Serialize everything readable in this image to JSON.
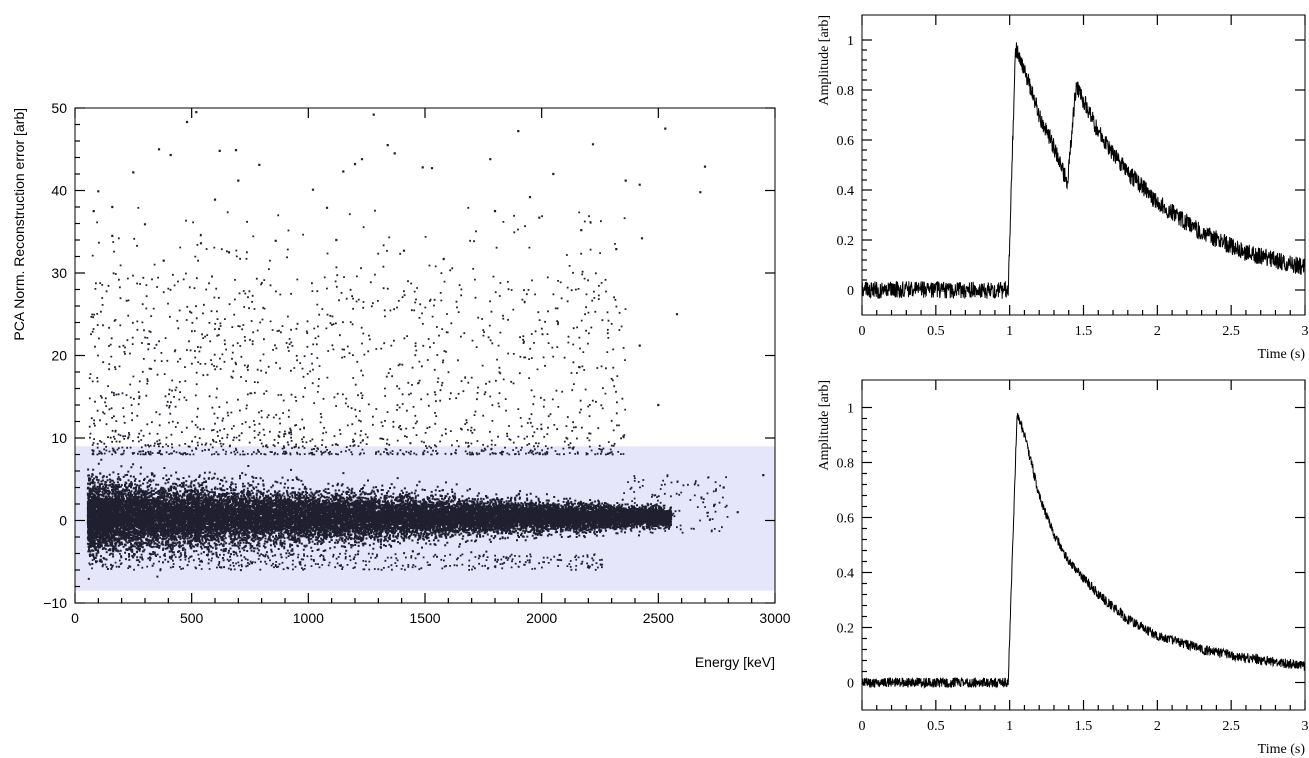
{
  "chart_data": [
    {
      "type": "scatter",
      "xlabel": "Energy [keV]",
      "ylabel": "PCA Norm. Reconstruction error [arb]",
      "xlim": [
        0,
        3000
      ],
      "ylim": [
        -10,
        50
      ],
      "x_ticks": [
        0,
        500,
        1000,
        1500,
        2000,
        2500,
        3000
      ],
      "y_ticks": [
        -10,
        0,
        10,
        20,
        30,
        40,
        50
      ],
      "x_tick_labels": [
        "0",
        "500",
        "1000",
        "1500",
        "2000",
        "2500",
        "3000"
      ],
      "y_tick_labels": [
        "−10",
        "0",
        "10",
        "20",
        "30",
        "40",
        "50"
      ],
      "marker_color": "#1f1f30",
      "highlight_band": {
        "y_range": [
          -8.5,
          9
        ],
        "color": "#e6e6fb"
      },
      "dense_cluster": {
        "x_range": [
          50,
          2500
        ],
        "y_center": 0.5,
        "y_spread": [
          -5,
          8
        ]
      },
      "outliers": [
        {
          "x": 480,
          "y": 48.3
        },
        {
          "x": 520,
          "y": 49.5
        },
        {
          "x": 1280,
          "y": 49.2
        },
        {
          "x": 2530,
          "y": 47.5
        },
        {
          "x": 1900,
          "y": 47.2
        },
        {
          "x": 360,
          "y": 45.0
        },
        {
          "x": 410,
          "y": 44.3
        },
        {
          "x": 620,
          "y": 44.8
        },
        {
          "x": 690,
          "y": 44.9
        },
        {
          "x": 1340,
          "y": 45.5
        },
        {
          "x": 2220,
          "y": 45.6
        },
        {
          "x": 1370,
          "y": 44.5
        },
        {
          "x": 1200,
          "y": 43.2
        },
        {
          "x": 1230,
          "y": 43.8
        },
        {
          "x": 790,
          "y": 43.1
        },
        {
          "x": 1780,
          "y": 43.8
        },
        {
          "x": 2700,
          "y": 42.9
        },
        {
          "x": 250,
          "y": 42.2
        },
        {
          "x": 1490,
          "y": 42.8
        },
        {
          "x": 1530,
          "y": 42.7
        },
        {
          "x": 1150,
          "y": 42.3
        },
        {
          "x": 2050,
          "y": 42.0
        },
        {
          "x": 700,
          "y": 41.2
        },
        {
          "x": 2360,
          "y": 41.2
        },
        {
          "x": 2420,
          "y": 40.7
        },
        {
          "x": 2680,
          "y": 39.8
        },
        {
          "x": 1020,
          "y": 40.1
        },
        {
          "x": 100,
          "y": 39.9
        },
        {
          "x": 600,
          "y": 38.9
        },
        {
          "x": 1950,
          "y": 39.2
        },
        {
          "x": 80,
          "y": 37.5
        },
        {
          "x": 160,
          "y": 38.0
        },
        {
          "x": 1080,
          "y": 37.9
        },
        {
          "x": 1800,
          "y": 37.5
        },
        {
          "x": 1990,
          "y": 36.7
        },
        {
          "x": 300,
          "y": 35.9
        },
        {
          "x": 2170,
          "y": 35.2
        },
        {
          "x": 160,
          "y": 34.5
        },
        {
          "x": 1120,
          "y": 34.0
        },
        {
          "x": 2430,
          "y": 34.2
        },
        {
          "x": 540,
          "y": 33.6
        },
        {
          "x": 860,
          "y": 33.9
        },
        {
          "x": 2320,
          "y": 32.9
        },
        {
          "x": 1410,
          "y": 32.7
        },
        {
          "x": 380,
          "y": 31.5
        },
        {
          "x": 660,
          "y": 32.5
        },
        {
          "x": 1580,
          "y": 31.7
        },
        {
          "x": 2580,
          "y": 25.0
        },
        {
          "x": 2420,
          "y": 21.2
        },
        {
          "x": 2500,
          "y": 14.0
        },
        {
          "x": 2950,
          "y": 5.5
        },
        {
          "x": 2780,
          "y": 4.0
        },
        {
          "x": 2840,
          "y": 1.0
        }
      ]
    },
    {
      "type": "line",
      "xlabel": "Time (s)",
      "ylabel": "Amplitude [arb]",
      "xlim": [
        0,
        3
      ],
      "ylim": [
        -0.1,
        1.1
      ],
      "x_ticks": [
        0,
        0.5,
        1,
        1.5,
        2,
        2.5,
        3
      ],
      "y_ticks": [
        0,
        0.2,
        0.4,
        0.6,
        0.8,
        1
      ],
      "x_tick_labels": [
        "0",
        "0.5",
        "1",
        "1.5",
        "2",
        "2.5",
        "3"
      ],
      "y_tick_labels": [
        "0",
        "0.2",
        "0.4",
        "0.6",
        "0.8",
        "1"
      ],
      "line_color": "#000000",
      "series": [
        {
          "description_points": [
            {
              "x": 0.0,
              "y": 0.0
            },
            {
              "x": 0.99,
              "y": 0.0
            },
            {
              "x": 1.04,
              "y": 0.97
            },
            {
              "x": 1.1,
              "y": 0.88
            },
            {
              "x": 1.2,
              "y": 0.7
            },
            {
              "x": 1.3,
              "y": 0.57
            },
            {
              "x": 1.39,
              "y": 0.43
            },
            {
              "x": 1.45,
              "y": 0.82
            },
            {
              "x": 1.6,
              "y": 0.63
            },
            {
              "x": 1.8,
              "y": 0.47
            },
            {
              "x": 2.0,
              "y": 0.35
            },
            {
              "x": 2.3,
              "y": 0.23
            },
            {
              "x": 2.6,
              "y": 0.15
            },
            {
              "x": 3.0,
              "y": 0.09
            }
          ],
          "noise_amplitude": 0.035
        }
      ]
    },
    {
      "type": "line",
      "xlabel": "Time (s)",
      "ylabel": "Amplitude [arb]",
      "xlim": [
        0,
        3
      ],
      "ylim": [
        -0.1,
        1.1
      ],
      "x_ticks": [
        0,
        0.5,
        1,
        1.5,
        2,
        2.5,
        3
      ],
      "y_ticks": [
        0,
        0.2,
        0.4,
        0.6,
        0.8,
        1
      ],
      "x_tick_labels": [
        "0",
        "0.5",
        "1",
        "1.5",
        "2",
        "2.5",
        "3"
      ],
      "y_tick_labels": [
        "0",
        "0.2",
        "0.4",
        "0.6",
        "0.8",
        "1"
      ],
      "line_color": "#000000",
      "series": [
        {
          "description_points": [
            {
              "x": 0.0,
              "y": 0.0
            },
            {
              "x": 0.99,
              "y": 0.0
            },
            {
              "x": 1.05,
              "y": 0.98
            },
            {
              "x": 1.1,
              "y": 0.9
            },
            {
              "x": 1.2,
              "y": 0.68
            },
            {
              "x": 1.3,
              "y": 0.54
            },
            {
              "x": 1.4,
              "y": 0.44
            },
            {
              "x": 1.6,
              "y": 0.32
            },
            {
              "x": 1.8,
              "y": 0.23
            },
            {
              "x": 2.0,
              "y": 0.17
            },
            {
              "x": 2.3,
              "y": 0.12
            },
            {
              "x": 2.6,
              "y": 0.09
            },
            {
              "x": 3.0,
              "y": 0.06
            }
          ],
          "noise_amplitude": 0.018
        }
      ]
    }
  ]
}
